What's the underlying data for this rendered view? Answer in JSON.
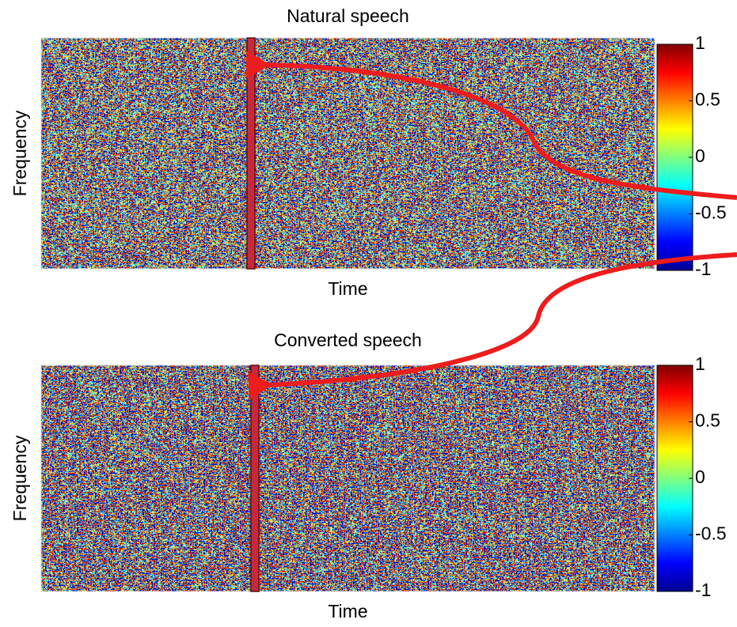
{
  "chart_data": [
    {
      "type": "heatmap",
      "title": "Natural speech",
      "xlabel": "Time",
      "ylabel": "Frequency",
      "colormap": "jet",
      "clim": [
        -1,
        1
      ],
      "cticks": [
        -1,
        -0.5,
        0,
        0.5,
        1
      ]
    },
    {
      "type": "heatmap",
      "title": "Converted speech",
      "xlabel": "Time",
      "ylabel": "Frequency",
      "colormap": "jet",
      "clim": [
        -1,
        1
      ],
      "cticks": [
        -1,
        -0.5,
        0,
        0.5,
        1
      ]
    }
  ]
}
